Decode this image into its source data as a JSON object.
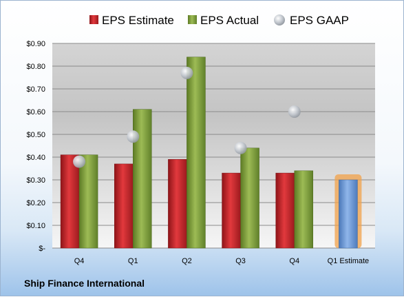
{
  "company": "Ship Finance International",
  "colors": {
    "estimate": "#c0262b",
    "actual": "#7f9e3a",
    "gaap": "#b9bec6",
    "forecast": "#6f9ad6",
    "forecast_glow": "#f2a14a"
  },
  "chart_data": {
    "type": "bar",
    "title": "",
    "xlabel": "",
    "ylabel": "",
    "ylim": [
      0,
      0.9
    ],
    "y_ticks": [
      "$-",
      "$0.10",
      "$0.20",
      "$0.30",
      "$0.40",
      "$0.50",
      "$0.60",
      "$0.70",
      "$0.80",
      "$0.90"
    ],
    "categories": [
      "Q4",
      "Q1",
      "Q2",
      "Q3",
      "Q4",
      "Q1 Estimate"
    ],
    "legend_position": "top",
    "grid": true,
    "series": [
      {
        "name": "EPS Estimate",
        "type": "bar",
        "values": [
          0.41,
          0.37,
          0.39,
          0.33,
          0.33,
          null
        ]
      },
      {
        "name": "EPS Actual",
        "type": "bar",
        "values": [
          0.41,
          0.61,
          0.84,
          0.44,
          0.34,
          null
        ]
      },
      {
        "name": "EPS GAAP",
        "type": "scatter",
        "values": [
          0.38,
          0.49,
          0.77,
          0.44,
          0.6,
          null
        ]
      }
    ],
    "forecast": {
      "category": "Q1 Estimate",
      "value": 0.3
    }
  }
}
